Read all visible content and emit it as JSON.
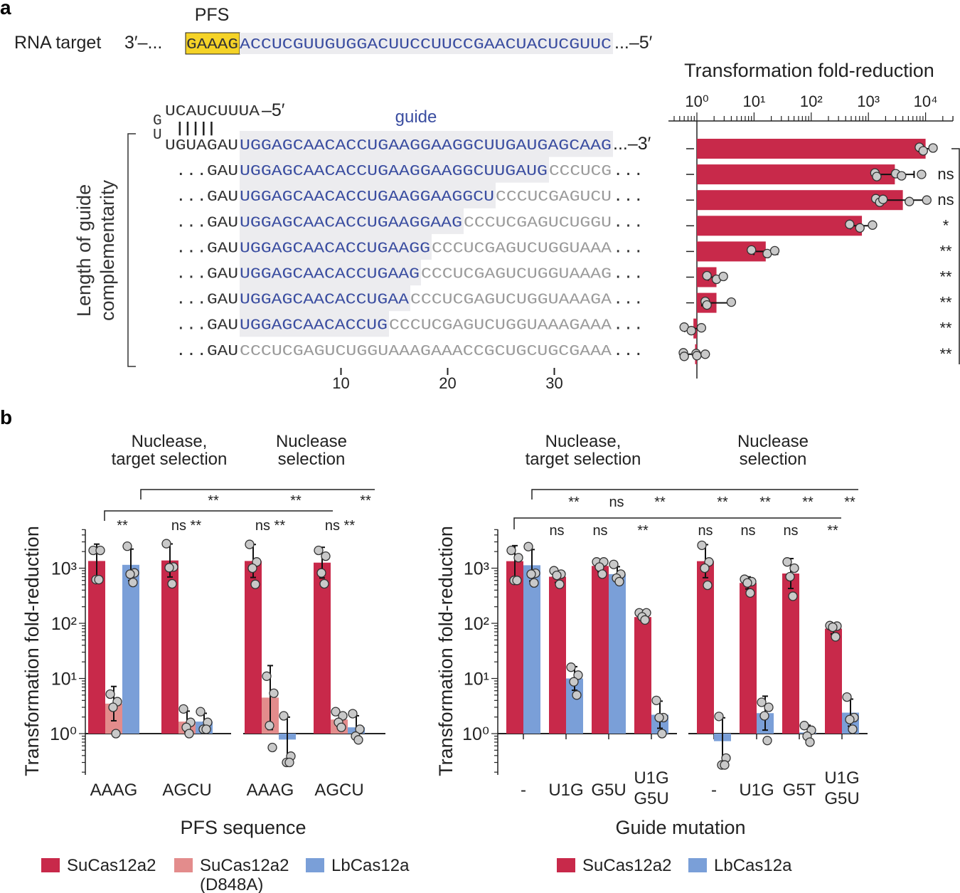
{
  "panel_a": {
    "label": "a",
    "pfs_label": "PFS",
    "target": {
      "label": "RNA target",
      "left": "3′–...",
      "pfs": "GAAAG",
      "sequence": "ACCUCGUUGUGGACUUCCUUCCGAACUACUCGUUC",
      "right": "...–5′"
    },
    "hairpin": {
      "g": "G",
      "u": "U",
      "top": "UCAUCUUUA",
      "top_end": "–5′",
      "pairs": "| | | | |"
    },
    "guide_label": "guide",
    "rows": [
      {
        "prefix": "UGUAGAU",
        "match": "UGGAGCAACACCUGAAGGAAGGCUUGAUGAGCAAG",
        "mismatch": "",
        "suffix": "...–3′"
      },
      {
        "prefix": "...GAU",
        "match": "UGGAGCAACACCUGAAGGAAGGCUUGAUG",
        "mismatch": "CCCUCG",
        "suffix": "..."
      },
      {
        "prefix": "...GAU",
        "match": "UGGAGCAACACCUGAAGGAAGGCU",
        "mismatch": "CCCUCGAGUCU",
        "suffix": "..."
      },
      {
        "prefix": "...GAU",
        "match": "UGGAGCAACACCUGAAGGAAG",
        "mismatch": "CCCUCGAGUCUGGU",
        "suffix": "..."
      },
      {
        "prefix": "...GAU",
        "match": "UGGAGCAACACCUGAAGG",
        "mismatch": "CCCUCGAGUCUGGUAAA",
        "suffix": "..."
      },
      {
        "prefix": "...GAU",
        "match": "UGGAGCAACACCUGAAG",
        "mismatch": "CCCUCGAGUCUGGUAAAG",
        "suffix": "..."
      },
      {
        "prefix": "...GAU",
        "match": "UGGAGCAACACCUGAA",
        "mismatch": "CCCUCGAGUCUGGUAAAGA",
        "suffix": "..."
      },
      {
        "prefix": "...GAU",
        "match": "UGGAGCAACACCUG",
        "mismatch": "CCCUCGAGUCUGGUAAAGAAA",
        "suffix": "..."
      },
      {
        "prefix": "...GAU",
        "match": "",
        "mismatch": "CCCUCGAGUCUGGUAAAGAAACCGCUGCUGCGAAA",
        "suffix": "..."
      }
    ],
    "y_label": [
      "Length of guide",
      "complementarity"
    ],
    "x_ticks": [
      "10",
      "20",
      "30"
    ],
    "colors": {
      "pfs_highlight": "#f5d327",
      "match_text": "#3a4da0",
      "mismatch_text": "#9a9a9a",
      "match_background": "#ececef"
    }
  },
  "panel_b": {
    "label": "b"
  },
  "chart_data": [
    {
      "type": "bar",
      "orientation": "horizontal",
      "title": "Transformation fold-reduction",
      "x_scale": "log",
      "xlim": [
        0.32,
        30000
      ],
      "x_ticks": [
        "10⁰",
        "10¹",
        "10²",
        "10³",
        "10⁴"
      ],
      "x_tick_values": [
        1,
        10,
        100,
        1000,
        10000
      ],
      "bar_color": "#c8294a",
      "bars": [
        {
          "value": 10000,
          "points": [
            7800,
            9100,
            13500
          ],
          "significance": ""
        },
        {
          "value": 2900,
          "points": [
            1300,
            1400,
            3000,
            3800,
            8500
          ],
          "significance": "ns"
        },
        {
          "value": 4000,
          "points": [
            1350,
            1580,
            1800,
            5200,
            10500
          ],
          "significance": "ns"
        },
        {
          "value": 770,
          "points": [
            470,
            710,
            1180
          ],
          "significance": "*"
        },
        {
          "value": 16,
          "points": [
            9,
            17,
            23
          ],
          "significance": "**"
        },
        {
          "value": 2.2,
          "points": [
            1.5,
            2.2,
            2.9
          ],
          "significance": "**"
        },
        {
          "value": 2.2,
          "points": [
            1.4,
            1.5,
            4.0
          ],
          "significance": "**"
        },
        {
          "value": 0.87,
          "points": [
            0.6,
            0.8,
            1.2
          ],
          "significance": "**"
        },
        {
          "value": 0.93,
          "points": [
            0.58,
            0.6,
            0.97,
            1.0,
            1.4
          ],
          "significance": "**"
        }
      ]
    },
    {
      "type": "bar",
      "y_scale": "log",
      "ylabel": "Transformation fold-reduction",
      "xlabel": "PFS sequence",
      "ylim": [
        0.18,
        5000
      ],
      "y_ticks": [
        "10⁰",
        "10¹",
        "10²",
        "10³"
      ],
      "y_tick_values": [
        1,
        10,
        100,
        1000
      ],
      "series": [
        {
          "name": "SuCas12a2",
          "color": "#c8294a"
        },
        {
          "name": "SuCas12a2 (D848A)",
          "color": "#e38c8c"
        },
        {
          "name": "LbCas12a",
          "color": "#7a9fd8"
        }
      ],
      "panels": [
        {
          "header": [
            "Nuclease,",
            "target selection"
          ],
          "categories": [
            {
              "label": "AAAG",
              "bars": [
                {
                  "value": 1350,
                  "points": [
                    2100,
                    2100,
                    620,
                    620
                  ]
                },
                {
                  "value": 3.5,
                  "points": [
                    5.2,
                    3.8,
                    3.0,
                    1.0
                  ]
                },
                {
                  "value": 1150,
                  "points": [
                    2500,
                    820,
                    780,
                    550
                  ]
                }
              ]
            },
            {
              "label": "AGCU",
              "bars": [
                {
                  "value": 1380,
                  "points": [
                    2780,
                    1050,
                    1020,
                    520
                  ]
                },
                {
                  "value": 1.65,
                  "points": [
                    2.8,
                    1.6,
                    1.3,
                    1.0
                  ]
                },
                {
                  "value": 1.65,
                  "points": [
                    2.5,
                    1.6,
                    1.2,
                    1.2
                  ]
                }
              ]
            }
          ]
        },
        {
          "header": [
            "Nuclease",
            "selection"
          ],
          "categories": [
            {
              "label": "AAAG",
              "bars": [
                {
                  "value": 1350,
                  "points": [
                    2700,
                    1300,
                    1000,
                    510
                  ]
                },
                {
                  "value": 4.5,
                  "points": [
                    11,
                    5.4,
                    1.4,
                    0.56
                  ]
                },
                {
                  "value": 0.78,
                  "points": [
                    2.1,
                    0.39,
                    0.3,
                    0.3
                  ]
                }
              ]
            },
            {
              "label": "AGCU",
              "bars": [
                {
                  "value": 1260,
                  "points": [
                    2100,
                    1650,
                    820,
                    520
                  ]
                },
                {
                  "value": 1.8,
                  "points": [
                    2.5,
                    2.1,
                    1.6,
                    1.3
                  ]
                },
                {
                  "value": 1.3,
                  "points": [
                    2.3,
                    1.2,
                    0.9,
                    0.77
                  ]
                }
              ]
            }
          ]
        }
      ],
      "significance": {
        "top": [
          "**",
          "**",
          "**"
        ],
        "bottom": [
          "**",
          "ns **",
          "ns **",
          "ns **"
        ]
      }
    },
    {
      "type": "bar",
      "y_scale": "log",
      "ylabel": "Transformation fold-reduction",
      "xlabel": "Guide mutation",
      "ylim": [
        0.18,
        5000
      ],
      "y_ticks": [
        "10⁰",
        "10¹",
        "10²",
        "10³"
      ],
      "y_tick_values": [
        1,
        10,
        100,
        1000
      ],
      "series": [
        {
          "name": "SuCas12a2",
          "color": "#c8294a"
        },
        {
          "name": "LbCas12a",
          "color": "#7a9fd8"
        }
      ],
      "panels": [
        {
          "header": [
            "Nuclease,",
            "target selection"
          ],
          "categories": [
            {
              "label": "-",
              "bars": [
                {
                  "value": 1340,
                  "points": [
                    2100,
                    1550,
                    600,
                    600
                  ]
                },
                {
                  "value": 1130,
                  "points": [
                    2460,
                    810,
                    780,
                    540
                  ]
                }
              ]
            },
            {
              "label": "U1G",
              "bars": [
                {
                  "value": 700,
                  "points": [
                    900,
                    780,
                    740,
                    510
                  ]
                },
                {
                  "value": 10,
                  "points": [
                    16,
                    11.5,
                    8.7,
                    5
                  ]
                }
              ]
            },
            {
              "label": "G5U",
              "bars": [
                {
                  "value": 1100,
                  "points": [
                    1300,
                    1300,
                    1050,
                    780
                  ]
                },
                {
                  "value": 780,
                  "points": [
                    1170,
                    780,
                    660,
                    570
                  ]
                }
              ]
            },
            {
              "label": "U1G G5U",
              "bars": [
                {
                  "value": 130,
                  "points": [
                    155,
                    155,
                    131,
                    115
                  ]
                },
                {
                  "value": 2.2,
                  "points": [
                    4,
                    1.95,
                    1.95,
                    1
                  ]
                }
              ]
            }
          ]
        },
        {
          "header": [
            "Nuclease",
            "selection"
          ],
          "categories": [
            {
              "label": "-",
              "bars": [
                {
                  "value": 1340,
                  "points": [
                    2600,
                    1300,
                    1000,
                    490
                  ]
                },
                {
                  "value": 0.73,
                  "points": [
                    2.05,
                    0.36,
                    0.27,
                    0.27
                  ]
                }
              ]
            },
            {
              "label": "U1G",
              "bars": [
                {
                  "value": 540,
                  "points": [
                    630,
                    570,
                    540,
                    355
                  ]
                },
                {
                  "value": 2.35,
                  "points": [
                    3.7,
                    3,
                    2.1,
                    0.75
                  ]
                }
              ]
            },
            {
              "label": "G5T",
              "bars": [
                {
                  "value": 800,
                  "points": [
                    1300,
                    1000,
                    700,
                    310
                  ]
                },
                {
                  "value": 1.05,
                  "points": [
                    1.4,
                    1.15,
                    0.9,
                    0.7
                  ]
                }
              ]
            },
            {
              "label": "U1G G5U",
              "bars": [
                {
                  "value": 80,
                  "points": [
                    91,
                    89,
                    85,
                    57
                  ]
                },
                {
                  "value": 2.4,
                  "points": [
                    4.6,
                    1.95,
                    1.8,
                    1.2
                  ]
                }
              ]
            }
          ]
        }
      ],
      "significance": {
        "top": [
          "**",
          "ns",
          "**",
          "**",
          "**",
          "**",
          "**"
        ],
        "bottom": [
          "ns",
          "ns",
          "**",
          "ns",
          "ns",
          "ns",
          "**"
        ]
      }
    }
  ]
}
